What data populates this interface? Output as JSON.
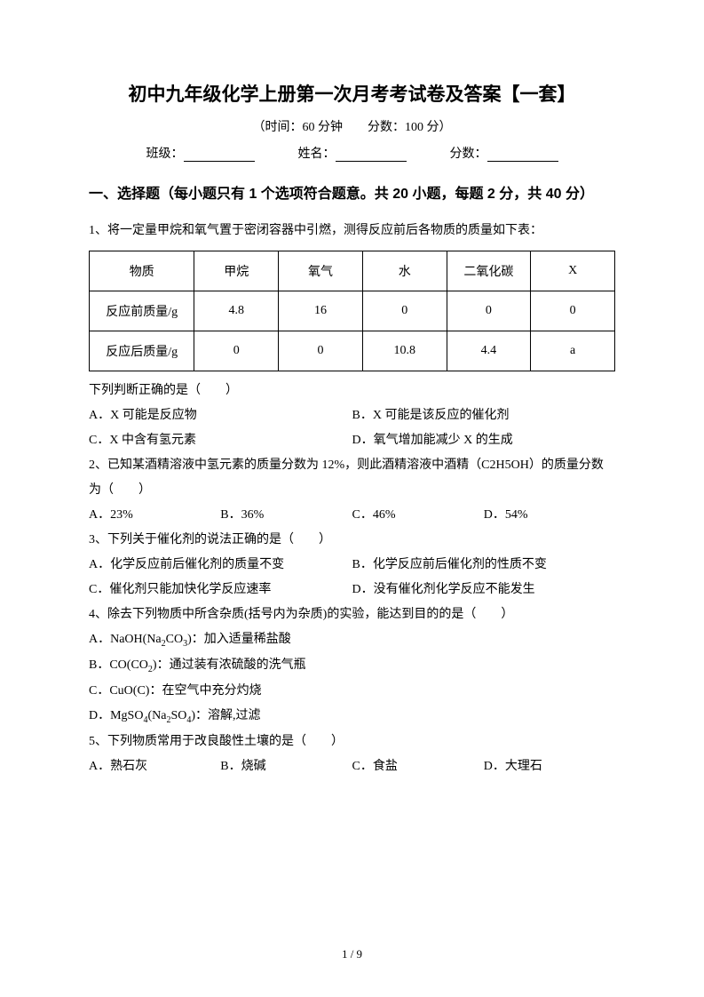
{
  "title": "初中九年级化学上册第一次月考考试卷及答案【一套】",
  "subtitle": "（时间：60 分钟　　分数：100 分）",
  "info": {
    "class_label": "班级：",
    "name_label": "姓名：",
    "score_label": "分数："
  },
  "section1": {
    "header": "一、选择题（每小题只有 1 个选项符合题意。共 20 小题，每题 2 分，共 40 分）"
  },
  "q1": {
    "stem": "1、将一定量甲烷和氧气置于密闭容器中引燃，测得反应前后各物质的质量如下表：",
    "table": {
      "headers": [
        "物质",
        "甲烷",
        "氧气",
        "水",
        "二氧化碳",
        "X"
      ],
      "row1_label": "反应前质量/g",
      "row1": [
        "4.8",
        "16",
        "0",
        "0",
        "0"
      ],
      "row2_label": "反应后质量/g",
      "row2": [
        "0",
        "0",
        "10.8",
        "4.4",
        "a"
      ]
    },
    "after": "下列判断正确的是（　　）",
    "opts": {
      "A": "A．X 可能是反应物",
      "B": "B．X 可能是该反应的催化剂",
      "C": "C．X 中含有氢元素",
      "D": "D．氧气增加能减少 X 的生成"
    }
  },
  "q2": {
    "stem": "2、已知某酒精溶液中氢元素的质量分数为 12%，则此酒精溶液中酒精（C2H5OH）的质量分数为（　　）",
    "opts": {
      "A": "A．23%",
      "B": "B．36%",
      "C": "C．46%",
      "D": "D．54%"
    }
  },
  "q3": {
    "stem": "3、下列关于催化剂的说法正确的是（　　）",
    "opts": {
      "A": "A．化学反应前后催化剂的质量不变",
      "B": "B．化学反应前后催化剂的性质不变",
      "C": "C．催化剂只能加快化学反应速率",
      "D": "D．没有催化剂化学反应不能发生"
    }
  },
  "q4": {
    "stem": "4、除去下列物质中所含杂质(括号内为杂质)的实验，能达到目的的是（　　）",
    "opts": {
      "A_pre": "A．NaOH(Na",
      "A_sub1": "2",
      "A_mid": "CO",
      "A_sub2": "3",
      "A_post": ")：加入适量稀盐酸",
      "B_pre": "B．CO(CO",
      "B_sub1": "2",
      "B_post": ")：通过装有浓硫酸的洗气瓶",
      "C": "C．CuO(C)：在空气中充分灼烧",
      "D_pre": "D．MgSO",
      "D_sub1": "4",
      "D_mid": "(Na",
      "D_sub2": "2",
      "D_mid2": "SO",
      "D_sub3": "4",
      "D_post": ")：溶解,过滤"
    }
  },
  "q5": {
    "stem": "5、下列物质常用于改良酸性土壤的是（　　）",
    "opts": {
      "A": "A．熟石灰",
      "B": "B．烧碱",
      "C": "C．食盐",
      "D": "D．大理石"
    }
  },
  "page_number": "1 / 9"
}
